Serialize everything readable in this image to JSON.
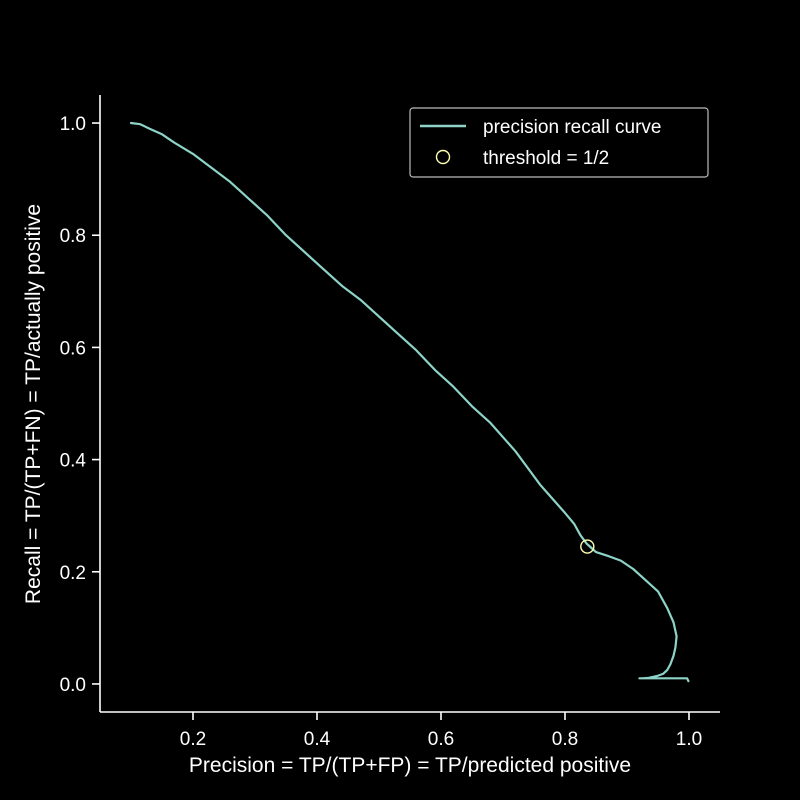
{
  "colors": {
    "background": "#000000",
    "foreground": "#ffffff",
    "curve": "#8dd3c7",
    "marker": "#ffffb3",
    "legend_border": "#bbbbbb"
  },
  "chart_data": {
    "type": "line",
    "xlabel": "Precision = TP/(TP+FP) = TP/predicted positive",
    "ylabel": "Recall = TP/(TP+FN) = TP/actually positive",
    "xlim": [
      0.05,
      1.05
    ],
    "ylim": [
      -0.05,
      1.05
    ],
    "x_ticks": [
      0.2,
      0.4,
      0.6,
      0.8,
      1.0
    ],
    "x_tick_labels": [
      "0.2",
      "0.4",
      "0.6",
      "0.8",
      "1.0"
    ],
    "y_ticks": [
      0.0,
      0.2,
      0.4,
      0.6,
      0.8,
      1.0
    ],
    "y_tick_labels": [
      "0.0",
      "0.2",
      "0.4",
      "0.6",
      "0.8",
      "1.0"
    ],
    "grid": false,
    "legend_position": "top-right",
    "series": [
      {
        "name": "precision recall curve",
        "kind": "line",
        "x": [
          0.1,
          0.115,
          0.13,
          0.15,
          0.17,
          0.2,
          0.23,
          0.26,
          0.29,
          0.32,
          0.35,
          0.38,
          0.41,
          0.44,
          0.47,
          0.5,
          0.53,
          0.56,
          0.59,
          0.62,
          0.65,
          0.68,
          0.7,
          0.72,
          0.74,
          0.76,
          0.78,
          0.8,
          0.815,
          0.825,
          0.835,
          0.84,
          0.85,
          0.87,
          0.89,
          0.91,
          0.93,
          0.95,
          0.965,
          0.975,
          0.98,
          0.978,
          0.975,
          0.97,
          0.965,
          0.958,
          0.948,
          0.935,
          0.925,
          0.92,
          0.95,
          0.98,
          0.997,
          0.999
        ],
        "y": [
          1.0,
          0.998,
          0.99,
          0.98,
          0.965,
          0.945,
          0.92,
          0.895,
          0.865,
          0.835,
          0.8,
          0.77,
          0.74,
          0.71,
          0.685,
          0.655,
          0.625,
          0.595,
          0.56,
          0.53,
          0.495,
          0.465,
          0.44,
          0.415,
          0.385,
          0.355,
          0.33,
          0.305,
          0.285,
          0.265,
          0.25,
          0.245,
          0.235,
          0.228,
          0.22,
          0.205,
          0.185,
          0.165,
          0.135,
          0.11,
          0.085,
          0.065,
          0.05,
          0.035,
          0.025,
          0.018,
          0.014,
          0.011,
          0.01,
          0.01,
          0.01,
          0.01,
          0.01,
          0.005
        ]
      },
      {
        "name": "threshold = 1/2",
        "kind": "marker",
        "x": [
          0.836
        ],
        "y": [
          0.245
        ]
      }
    ]
  }
}
